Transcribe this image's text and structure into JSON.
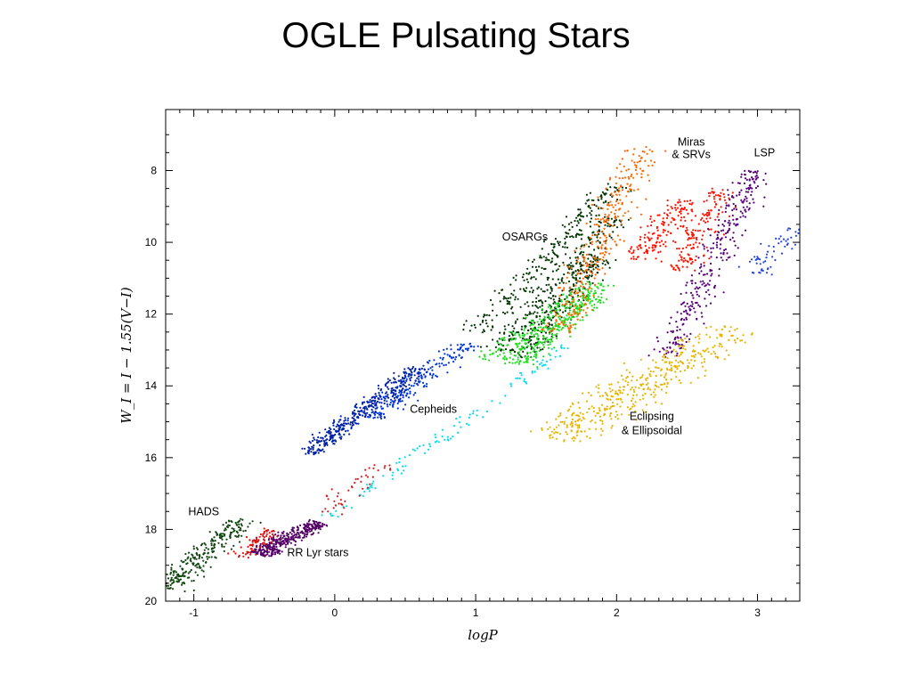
{
  "slide": {
    "title": "OGLE Pulsating Stars"
  },
  "chart_data": {
    "type": "scatter",
    "title": "",
    "xlabel": "logP",
    "ylabel": "W_I = I − 1.55(V−I)",
    "xlim": [
      -1.2,
      3.3
    ],
    "ylim": [
      20,
      6.3
    ],
    "y_inverted": true,
    "grid": false,
    "x_ticks": [
      -1,
      0,
      1,
      2,
      3
    ],
    "y_ticks": [
      8,
      10,
      12,
      14,
      16,
      18,
      20
    ],
    "annotations": [
      {
        "text": "Miras",
        "x": 2.53,
        "y": 7.3
      },
      {
        "text": "& SRVs",
        "x": 2.53,
        "y": 7.65
      },
      {
        "text": "LSP",
        "x": 3.05,
        "y": 7.6
      },
      {
        "text": "OSARGs",
        "x": 1.35,
        "y": 9.95
      },
      {
        "text": "Cepheids",
        "x": 0.7,
        "y": 14.75
      },
      {
        "text": "Eclipsing",
        "x": 2.25,
        "y": 14.95
      },
      {
        "text": "& Ellipsoidal",
        "x": 2.25,
        "y": 15.35
      },
      {
        "text": "HADS",
        "x": -0.93,
        "y": 17.6
      },
      {
        "text": "RR Lyr stars",
        "x": -0.12,
        "y": 18.75
      }
    ],
    "series": [
      {
        "color": "#003300",
        "count": 700,
        "segments": [
          [
            1.0,
            12.5,
            2.0,
            8.4
          ],
          [
            1.15,
            13.0,
            2.0,
            9.3
          ],
          [
            1.3,
            13.2,
            1.9,
            10.4
          ]
        ],
        "spread": 0.28
      },
      {
        "color": "#22dd22",
        "count": 420,
        "segments": [
          [
            1.1,
            13.3,
            1.9,
            11.1
          ],
          [
            1.3,
            13.4,
            1.85,
            11.5
          ]
        ],
        "spread": 0.3
      },
      {
        "color": "#0033dd",
        "count": 200,
        "segments": [
          [
            0.25,
            14.9,
            0.95,
            12.8
          ]
        ],
        "spread": 0.25
      },
      {
        "color": "#0022aa",
        "count": 380,
        "segments": [
          [
            -0.2,
            15.9,
            0.6,
            13.5
          ]
        ],
        "spread": 0.22
      },
      {
        "color": "#00ddee",
        "count": 120,
        "segments": [
          [
            -0.05,
            17.7,
            1.65,
            12.9
          ]
        ],
        "spread": 0.2
      },
      {
        "color": "#ff6600",
        "count": 320,
        "segments": [
          [
            1.6,
            12.5,
            2.2,
            7.3
          ]
        ],
        "spread": 0.35
      },
      {
        "color": "#ff1100",
        "count": 300,
        "segments": [
          [
            2.15,
            10.5,
            2.5,
            8.8
          ],
          [
            2.45,
            10.8,
            2.75,
            8.5
          ]
        ],
        "spread": 0.35
      },
      {
        "color": "#550077",
        "count": 320,
        "segments": [
          [
            2.35,
            13.2,
            3.0,
            8.0
          ]
        ],
        "spread": 0.3
      },
      {
        "color": "#2244dd",
        "count": 60,
        "segments": [
          [
            2.95,
            11.0,
            3.25,
            9.6
          ]
        ],
        "spread": 0.3
      },
      {
        "color": "#e8b400",
        "count": 420,
        "segments": [
          [
            1.55,
            15.5,
            2.85,
            12.4
          ]
        ],
        "spread": 0.55
      },
      {
        "color": "#114411",
        "count": 260,
        "segments": [
          [
            -1.2,
            19.7,
            -0.65,
            17.7
          ]
        ],
        "spread": 0.3
      },
      {
        "color": "#dd1111",
        "count": 90,
        "segments": [
          [
            -0.65,
            18.8,
            -0.45,
            18.0
          ]
        ],
        "spread": 0.25
      },
      {
        "color": "#cc2222",
        "count": 45,
        "segments": [
          [
            -0.1,
            17.5,
            0.4,
            16.0
          ]
        ],
        "spread": 0.3
      },
      {
        "color": "#550066",
        "count": 320,
        "segments": [
          [
            -0.55,
            18.7,
            -0.1,
            17.8
          ]
        ],
        "spread": 0.22
      }
    ]
  }
}
